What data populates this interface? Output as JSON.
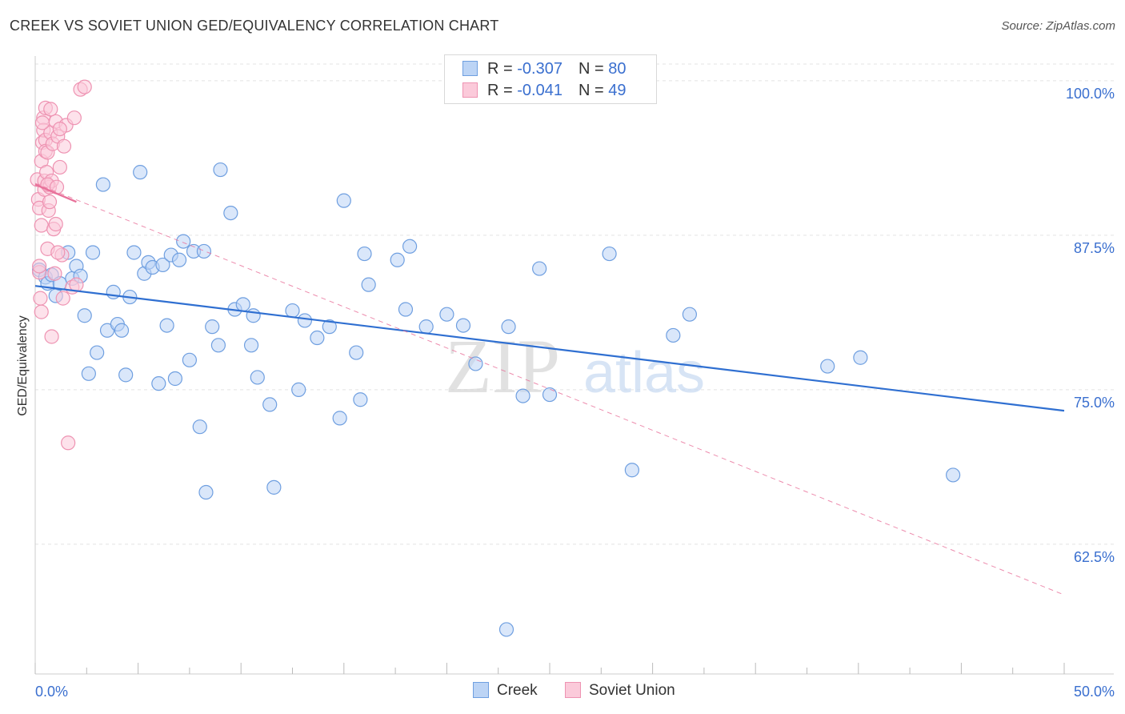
{
  "title": "CREEK VS SOVIET UNION GED/EQUIVALENCY CORRELATION CHART",
  "source": "Source: ZipAtlas.com",
  "legend_top": [
    {
      "r_label": "R = ",
      "r_value": "-0.307",
      "n_label": "N = ",
      "n_value": "80"
    },
    {
      "r_label": "R = ",
      "r_value": "-0.041",
      "n_label": "N = ",
      "n_value": "49"
    }
  ],
  "chart_data": {
    "type": "scatter",
    "title": "CREEK VS SOVIET UNION GED/EQUIVALENCY CORRELATION CHART",
    "xlabel": "",
    "ylabel": "GED/Equivalency",
    "xlim": [
      0,
      50
    ],
    "ylim": [
      52,
      102
    ],
    "x_tick_labels": [
      "0.0%",
      "50.0%"
    ],
    "y_ticks": [
      62.5,
      75.0,
      87.5,
      100.0
    ],
    "y_tick_labels": [
      "62.5%",
      "75.0%",
      "87.5%",
      "100.0%"
    ],
    "grid": true,
    "legend_position": "bottom-center",
    "watermark": {
      "zip": "ZIP",
      "atlas": "atlas"
    },
    "series": [
      {
        "name": "Creek",
        "color": "#8db6ea",
        "line_color": "#2f6fd1",
        "trend": {
          "x": [
            0,
            50
          ],
          "y": [
            83.4,
            73.3
          ],
          "style": "solid"
        },
        "points": [
          [
            0.2,
            84.7
          ],
          [
            0.5,
            84.1
          ],
          [
            0.6,
            83.6
          ],
          [
            0.8,
            84.3
          ],
          [
            1.0,
            82.6
          ],
          [
            1.2,
            83.6
          ],
          [
            1.6,
            86.1
          ],
          [
            1.8,
            84.0
          ],
          [
            2.0,
            85.0
          ],
          [
            2.2,
            84.2
          ],
          [
            2.4,
            81.0
          ],
          [
            2.6,
            76.3
          ],
          [
            2.8,
            86.1
          ],
          [
            3.0,
            78.0
          ],
          [
            3.3,
            91.6
          ],
          [
            3.5,
            79.8
          ],
          [
            3.8,
            82.9
          ],
          [
            4.0,
            80.3
          ],
          [
            4.2,
            79.8
          ],
          [
            4.4,
            76.2
          ],
          [
            4.6,
            82.5
          ],
          [
            4.8,
            86.1
          ],
          [
            5.1,
            92.6
          ],
          [
            5.3,
            84.4
          ],
          [
            5.5,
            85.3
          ],
          [
            5.7,
            84.9
          ],
          [
            6.0,
            75.5
          ],
          [
            6.2,
            85.1
          ],
          [
            6.4,
            80.2
          ],
          [
            6.6,
            85.9
          ],
          [
            6.8,
            75.9
          ],
          [
            7.0,
            85.5
          ],
          [
            7.2,
            87.0
          ],
          [
            7.5,
            77.4
          ],
          [
            7.7,
            86.2
          ],
          [
            8.0,
            72.0
          ],
          [
            8.2,
            86.2
          ],
          [
            8.3,
            66.7
          ],
          [
            8.6,
            80.1
          ],
          [
            8.9,
            78.6
          ],
          [
            9.0,
            92.8
          ],
          [
            9.5,
            89.3
          ],
          [
            9.7,
            81.5
          ],
          [
            10.1,
            81.9
          ],
          [
            10.5,
            78.6
          ],
          [
            10.6,
            81.0
          ],
          [
            10.8,
            76.0
          ],
          [
            11.4,
            73.8
          ],
          [
            11.6,
            67.1
          ],
          [
            12.5,
            81.4
          ],
          [
            12.8,
            75.0
          ],
          [
            13.1,
            80.6
          ],
          [
            13.7,
            79.2
          ],
          [
            14.3,
            80.1
          ],
          [
            14.8,
            72.7
          ],
          [
            15.0,
            90.3
          ],
          [
            15.6,
            78.0
          ],
          [
            15.8,
            74.2
          ],
          [
            16.0,
            86.0
          ],
          [
            16.2,
            83.5
          ],
          [
            17.6,
            85.5
          ],
          [
            18.0,
            81.5
          ],
          [
            18.2,
            86.6
          ],
          [
            19.0,
            80.1
          ],
          [
            20.0,
            81.1
          ],
          [
            20.8,
            80.2
          ],
          [
            21.4,
            77.1
          ],
          [
            22.9,
            55.6
          ],
          [
            23.0,
            80.1
          ],
          [
            23.7,
            74.5
          ],
          [
            24.5,
            84.8
          ],
          [
            25.0,
            74.6
          ],
          [
            27.9,
            86.0
          ],
          [
            29.0,
            68.5
          ],
          [
            31.0,
            79.4
          ],
          [
            31.8,
            81.1
          ],
          [
            38.5,
            76.9
          ],
          [
            40.1,
            77.6
          ],
          [
            44.6,
            68.1
          ],
          [
            22.4,
            100.7
          ]
        ]
      },
      {
        "name": "Soviet Union",
        "color": "#f4a7bf",
        "line_color": "#e8719a",
        "trend": {
          "x": [
            0,
            50
          ],
          "y": [
            91.7,
            58.4
          ],
          "style": "dashed"
        },
        "trend_solid": {
          "x": [
            0,
            2
          ],
          "y": [
            91.6,
            90.2
          ]
        },
        "points": [
          [
            0.1,
            92.0
          ],
          [
            0.15,
            90.4
          ],
          [
            0.2,
            89.7
          ],
          [
            0.2,
            84.5
          ],
          [
            0.2,
            85.0
          ],
          [
            0.25,
            82.4
          ],
          [
            0.3,
            81.3
          ],
          [
            0.3,
            88.3
          ],
          [
            0.3,
            93.5
          ],
          [
            0.35,
            95.0
          ],
          [
            0.4,
            97.0
          ],
          [
            0.4,
            96.0
          ],
          [
            0.45,
            91.2
          ],
          [
            0.45,
            91.9
          ],
          [
            0.5,
            95.2
          ],
          [
            0.5,
            97.8
          ],
          [
            0.5,
            94.3
          ],
          [
            0.55,
            92.6
          ],
          [
            0.6,
            86.4
          ],
          [
            0.6,
            94.2
          ],
          [
            0.65,
            89.5
          ],
          [
            0.7,
            90.2
          ],
          [
            0.7,
            91.4
          ],
          [
            0.75,
            95.8
          ],
          [
            0.8,
            91.9
          ],
          [
            0.8,
            79.3
          ],
          [
            0.85,
            94.9
          ],
          [
            0.9,
            88.0
          ],
          [
            0.95,
            84.4
          ],
          [
            1.0,
            96.7
          ],
          [
            1.0,
            88.4
          ],
          [
            1.1,
            95.5
          ],
          [
            1.2,
            93.0
          ],
          [
            1.3,
            85.9
          ],
          [
            1.4,
            94.7
          ],
          [
            1.5,
            96.4
          ],
          [
            1.6,
            70.7
          ],
          [
            0.35,
            96.6
          ],
          [
            0.6,
            91.6
          ],
          [
            0.75,
            97.7
          ],
          [
            1.05,
            91.4
          ],
          [
            1.1,
            86.1
          ],
          [
            1.2,
            96.1
          ],
          [
            1.35,
            82.4
          ],
          [
            1.8,
            83.3
          ],
          [
            2.0,
            83.5
          ],
          [
            1.9,
            97.0
          ],
          [
            2.2,
            99.3
          ],
          [
            2.4,
            99.5
          ]
        ]
      }
    ]
  }
}
